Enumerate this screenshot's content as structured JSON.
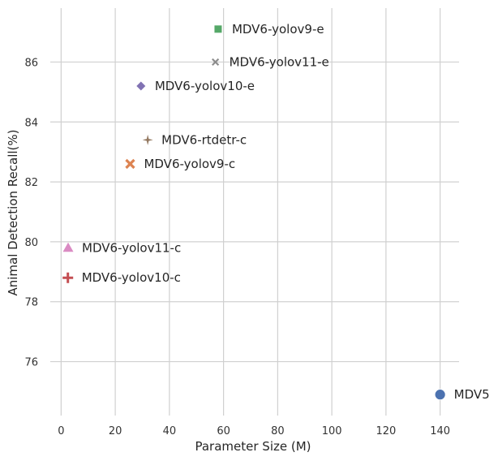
{
  "chart_data": {
    "type": "scatter",
    "title": "",
    "xlabel": "Parameter Size (M)",
    "ylabel": "Animal Detection Recall(%)",
    "xlim": [
      -4,
      147
    ],
    "ylim": [
      74.2,
      87.8
    ],
    "xticks": [
      0,
      20,
      40,
      60,
      80,
      100,
      120,
      140
    ],
    "yticks": [
      76,
      78,
      80,
      82,
      84,
      86
    ],
    "grid": true,
    "legend": "none",
    "points": [
      {
        "label": "MDV5",
        "x": 140,
        "y": 74.9,
        "marker": "circle",
        "color": "#4c72b0"
      },
      {
        "label": "MDV6-yolov9-c",
        "x": 25.5,
        "y": 82.6,
        "marker": "x",
        "color": "#dd8452"
      },
      {
        "label": "MDV6-yolov9-e",
        "x": 58,
        "y": 87.1,
        "marker": "square",
        "color": "#55a868"
      },
      {
        "label": "MDV6-yolov10-c",
        "x": 2.5,
        "y": 78.8,
        "marker": "plus",
        "color": "#c44e52"
      },
      {
        "label": "MDV6-yolov10-e",
        "x": 29.5,
        "y": 85.2,
        "marker": "diamond",
        "color": "#8172b3"
      },
      {
        "label": "MDV6-rtdetr-c",
        "x": 32,
        "y": 83.4,
        "marker": "star",
        "color": "#937860"
      },
      {
        "label": "MDV6-yolov11-c",
        "x": 2.6,
        "y": 79.8,
        "marker": "triangle",
        "color": "#da8bc3"
      },
      {
        "label": "MDV6-yolov11-e",
        "x": 57,
        "y": 86.0,
        "marker": "x-thin",
        "color": "#8c8c8c"
      }
    ]
  }
}
